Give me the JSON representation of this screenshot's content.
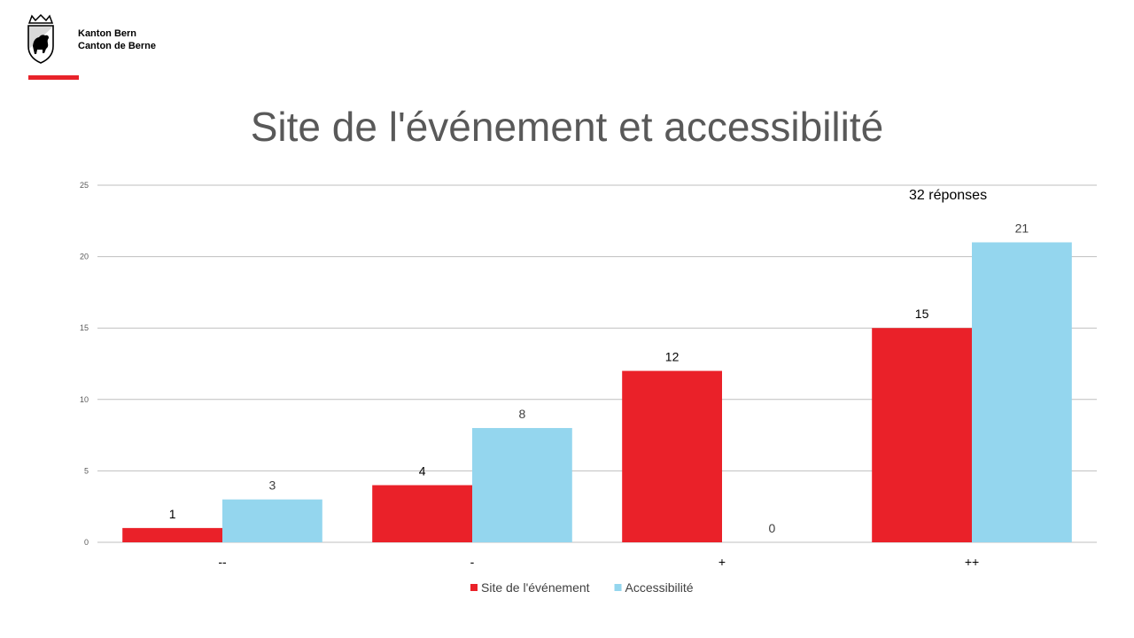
{
  "header": {
    "org_line1": "Kanton Bern",
    "org_line2": "Canton de Berne"
  },
  "colors": {
    "brand_red": "#e8232a",
    "series_1": "#ea2129",
    "series_2": "#94d6ee",
    "grid": "#bfbfbf",
    "title": "#595959"
  },
  "annotation": "32 réponses",
  "chart_data": {
    "type": "bar",
    "title": "Site de l'événement et accessibilité",
    "categories": [
      "--",
      "-",
      "+",
      "++"
    ],
    "series": [
      {
        "name": "Site de l'événement",
        "values": [
          1,
          4,
          12,
          15
        ]
      },
      {
        "name": "Accessibilité",
        "values": [
          3,
          8,
          0,
          21
        ]
      }
    ],
    "ylim": [
      0,
      25
    ],
    "yticks": [
      0,
      5,
      10,
      15,
      20,
      25
    ],
    "grid": true,
    "legend": "bottom-center"
  }
}
